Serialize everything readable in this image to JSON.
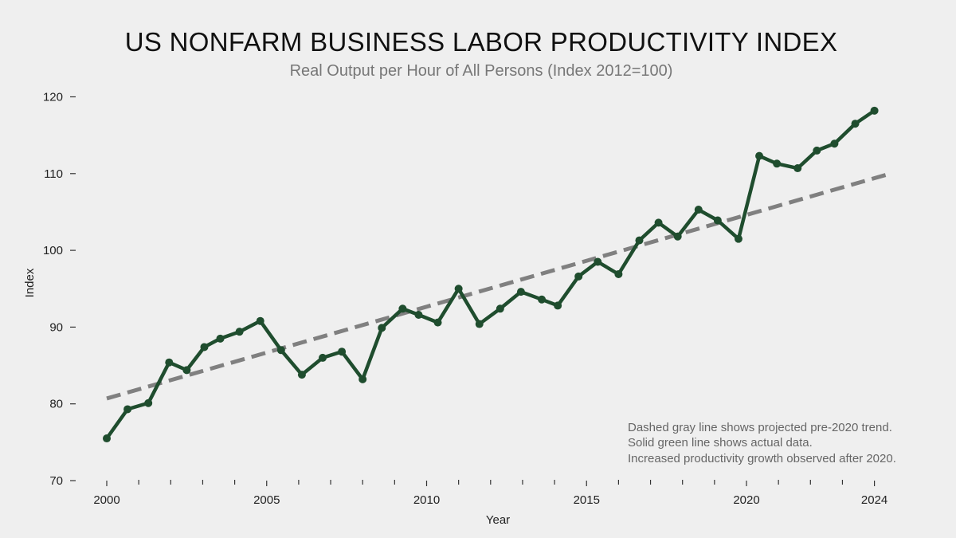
{
  "chart_data": {
    "type": "line",
    "title": "US NONFARM BUSINESS LABOR PRODUCTIVITY INDEX",
    "subtitle": "Real Output per Hour of All Persons (Index 2012=100)",
    "xlabel": "Year",
    "ylabel": "Index",
    "xlim": [
      1999.5,
      2025
    ],
    "ylim": [
      70,
      122
    ],
    "y_ticks": [
      70,
      80,
      90,
      100,
      110,
      120
    ],
    "x_major_ticks": [
      2000,
      2005,
      2010,
      2015,
      2020,
      2024
    ],
    "x_minor_ticks": [
      2001,
      2002,
      2003,
      2004,
      2006,
      2007,
      2008,
      2009,
      2011,
      2012,
      2013,
      2014,
      2016,
      2017,
      2018,
      2019,
      2021,
      2022,
      2023
    ],
    "grid": false,
    "series": [
      {
        "name": "actual",
        "style": "solid",
        "color": "#1f4d2e",
        "marker": "circle",
        "points": [
          {
            "x": 2000.0,
            "y": 75.5
          },
          {
            "x": 2000.65,
            "y": 79.3
          },
          {
            "x": 2001.3,
            "y": 80.1
          },
          {
            "x": 2001.95,
            "y": 85.4
          },
          {
            "x": 2002.5,
            "y": 84.4
          },
          {
            "x": 2003.05,
            "y": 87.4
          },
          {
            "x": 2003.55,
            "y": 88.5
          },
          {
            "x": 2004.15,
            "y": 89.4
          },
          {
            "x": 2004.8,
            "y": 90.8
          },
          {
            "x": 2005.45,
            "y": 87.0
          },
          {
            "x": 2006.1,
            "y": 83.8
          },
          {
            "x": 2006.75,
            "y": 86.0
          },
          {
            "x": 2007.35,
            "y": 86.8
          },
          {
            "x": 2008.0,
            "y": 83.2
          },
          {
            "x": 2008.6,
            "y": 89.9
          },
          {
            "x": 2009.25,
            "y": 92.4
          },
          {
            "x": 2009.75,
            "y": 91.6
          },
          {
            "x": 2010.35,
            "y": 90.6
          },
          {
            "x": 2011.0,
            "y": 95.0
          },
          {
            "x": 2011.65,
            "y": 90.4
          },
          {
            "x": 2012.3,
            "y": 92.4
          },
          {
            "x": 2012.95,
            "y": 94.6
          },
          {
            "x": 2013.6,
            "y": 93.6
          },
          {
            "x": 2014.1,
            "y": 92.8
          },
          {
            "x": 2014.75,
            "y": 96.6
          },
          {
            "x": 2015.35,
            "y": 98.5
          },
          {
            "x": 2016.0,
            "y": 96.9
          },
          {
            "x": 2016.65,
            "y": 101.3
          },
          {
            "x": 2017.25,
            "y": 103.6
          },
          {
            "x": 2017.85,
            "y": 101.8
          },
          {
            "x": 2018.5,
            "y": 105.3
          },
          {
            "x": 2019.1,
            "y": 103.9
          },
          {
            "x": 2019.75,
            "y": 101.5
          },
          {
            "x": 2020.4,
            "y": 112.3
          },
          {
            "x": 2020.95,
            "y": 111.3
          },
          {
            "x": 2021.6,
            "y": 110.7
          },
          {
            "x": 2022.2,
            "y": 113.0
          },
          {
            "x": 2022.75,
            "y": 113.9
          },
          {
            "x": 2023.4,
            "y": 116.5
          },
          {
            "x": 2024.0,
            "y": 118.2
          }
        ]
      },
      {
        "name": "projected pre-2020 trend",
        "style": "dashed",
        "color": "#808080",
        "points": [
          {
            "x": 2000.0,
            "y": 80.7
          },
          {
            "x": 2024.5,
            "y": 110.0
          }
        ]
      }
    ],
    "annotations": [
      "Dashed gray line shows projected pre-2020 trend.",
      "Solid green line shows actual data.",
      "Increased productivity growth observed after 2020."
    ]
  }
}
